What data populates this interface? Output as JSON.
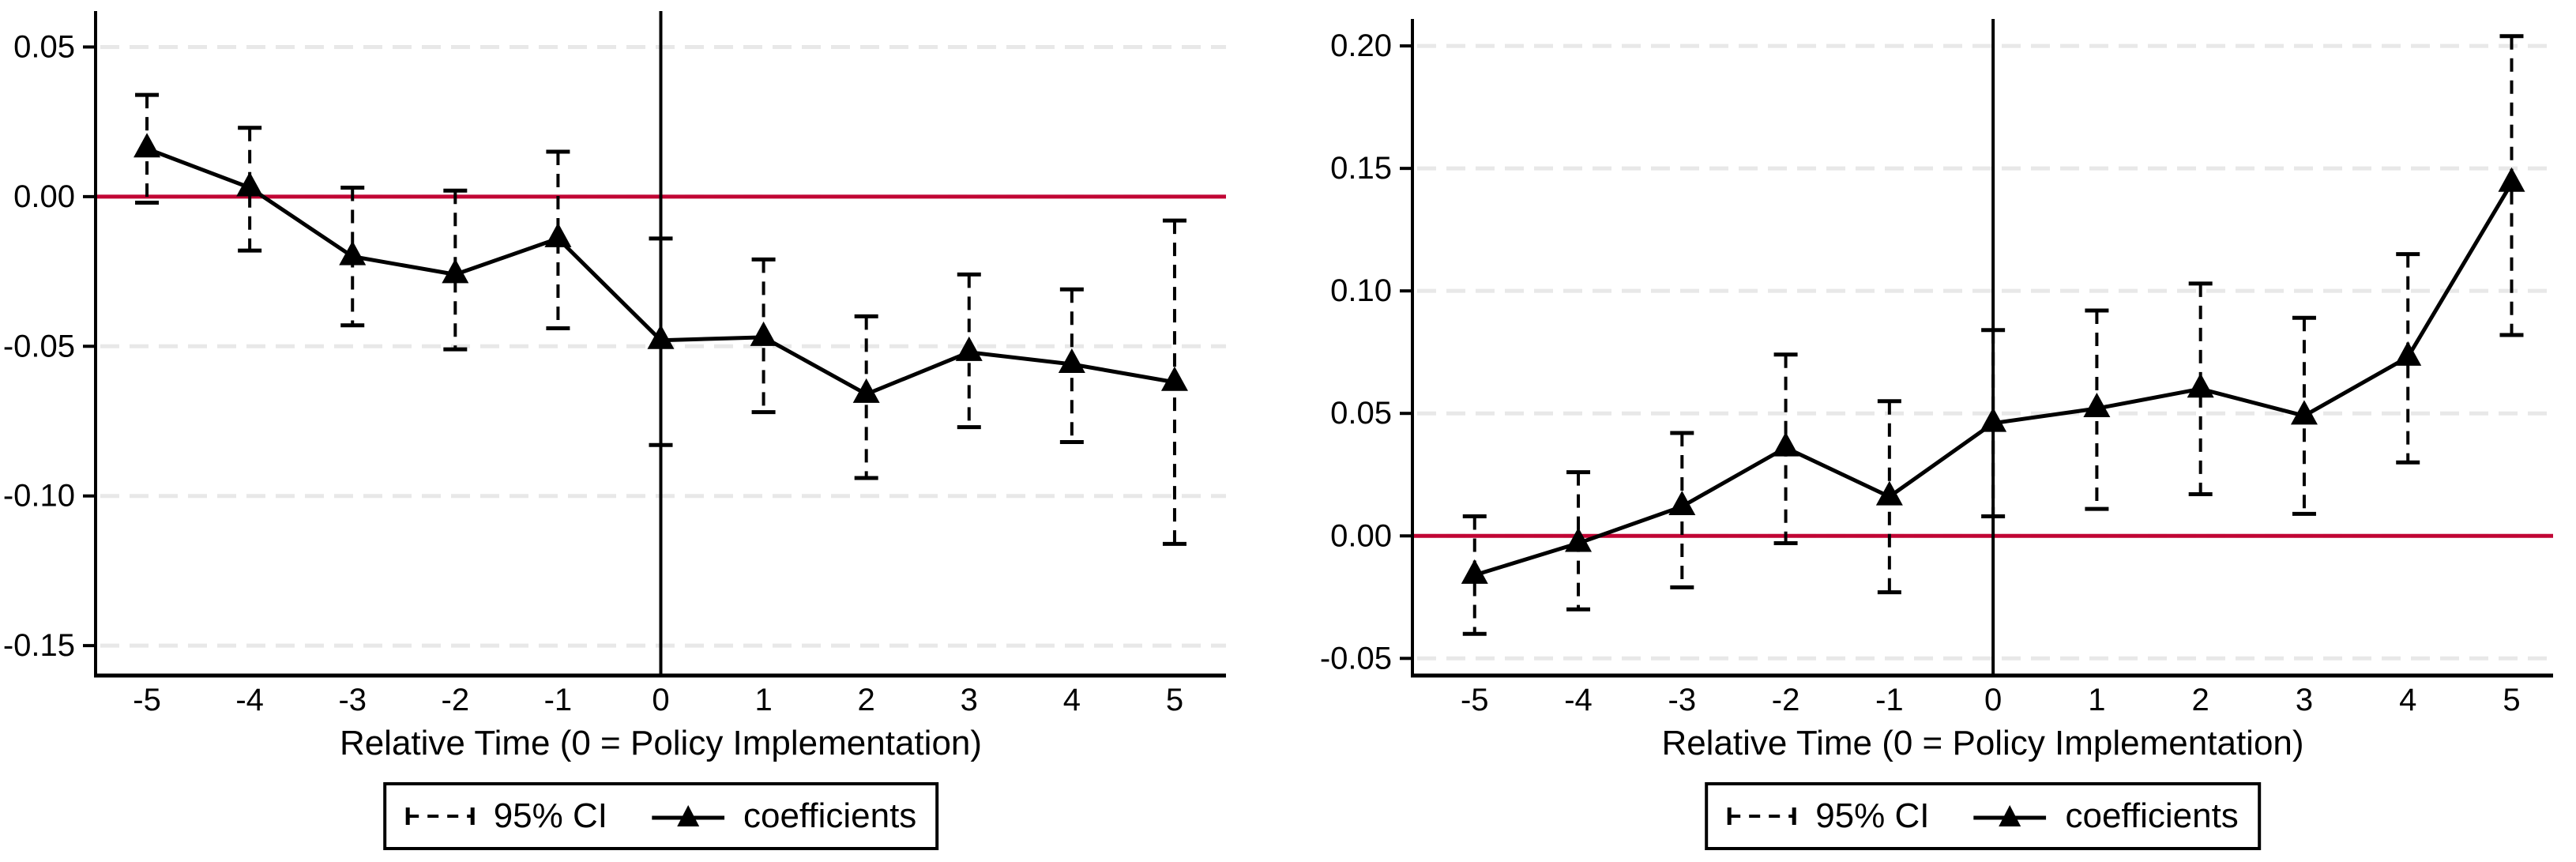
{
  "figure": {
    "background_color": "#ffffff",
    "axis_color": "#000000",
    "grid_color": "#e8e8e8",
    "zero_line_color": "#c10534",
    "marker_shape": "filled-triangle-up"
  },
  "chart_data": [
    {
      "type": "line",
      "panel": "left",
      "title": "",
      "xlabel": "Relative Time (0 = Policy Implementation)",
      "ylabel": "",
      "legend": {
        "ci": "95% CI",
        "coef": "coefficients",
        "position": "bottom-center-boxed"
      },
      "grid": true,
      "zero_line": true,
      "vertical_line_x": 0,
      "x": [
        -5,
        -4,
        -3,
        -2,
        -1,
        0,
        1,
        2,
        3,
        4,
        5
      ],
      "xtick_labels": [
        "-5",
        "-4",
        "-3",
        "-2",
        "-1",
        "0",
        "1",
        "2",
        "3",
        "4",
        "5"
      ],
      "xlim": [
        -5.5,
        5.5
      ],
      "ylim": [
        -0.16,
        0.062
      ],
      "yticks": [
        {
          "label": "0.05",
          "value": 0.05
        },
        {
          "label": "0.00",
          "value": 0.0
        },
        {
          "label": "-0.05",
          "value": -0.05
        },
        {
          "label": "-0.10",
          "value": -0.1
        },
        {
          "label": "-0.15",
          "value": -0.15
        }
      ],
      "series": [
        {
          "name": "coefficients",
          "style": "solid-black-line-triangle-markers",
          "values": [
            0.016,
            0.003,
            -0.02,
            -0.026,
            -0.014,
            -0.048,
            -0.047,
            -0.066,
            -0.052,
            -0.056,
            -0.062
          ]
        },
        {
          "name": "95% CI lower",
          "style": "dashed-whisker-cap",
          "values": [
            -0.002,
            -0.018,
            -0.043,
            -0.051,
            -0.044,
            -0.083,
            -0.072,
            -0.094,
            -0.077,
            -0.082,
            -0.116
          ]
        },
        {
          "name": "95% CI upper",
          "style": "dashed-whisker-cap",
          "values": [
            0.034,
            0.023,
            0.003,
            0.002,
            0.015,
            -0.014,
            -0.021,
            -0.04,
            -0.026,
            -0.031,
            -0.008
          ]
        }
      ]
    },
    {
      "type": "line",
      "panel": "right",
      "title": "",
      "xlabel": "Relative Time (0 = Policy Implementation)",
      "ylabel": "",
      "legend": {
        "ci": "95% CI",
        "coef": "coefficients",
        "position": "bottom-center-boxed"
      },
      "grid": true,
      "zero_line": true,
      "vertical_line_x": 0,
      "x": [
        -5,
        -4,
        -3,
        -2,
        -1,
        0,
        1,
        2,
        3,
        4,
        5
      ],
      "xtick_labels": [
        "-5",
        "-4",
        "-3",
        "-2",
        "-1",
        "0",
        "1",
        "2",
        "3",
        "4",
        "5"
      ],
      "xlim": [
        -5.6,
        5.4
      ],
      "ylim": [
        -0.057,
        0.211
      ],
      "yticks": [
        {
          "label": "0.20",
          "value": 0.2
        },
        {
          "label": "0.15",
          "value": 0.15
        },
        {
          "label": "0.10",
          "value": 0.1
        },
        {
          "label": "0.05",
          "value": 0.05
        },
        {
          "label": "0.00",
          "value": 0.0
        },
        {
          "label": "-0.05",
          "value": -0.05
        }
      ],
      "series": [
        {
          "name": "coefficients",
          "style": "solid-black-line-triangle-markers",
          "values": [
            -0.016,
            -0.003,
            0.012,
            0.036,
            0.016,
            0.046,
            0.052,
            0.06,
            0.049,
            0.073,
            0.144
          ]
        },
        {
          "name": "95% CI lower",
          "style": "dashed-whisker-cap",
          "values": [
            -0.04,
            -0.03,
            -0.021,
            -0.003,
            -0.023,
            0.008,
            0.011,
            0.017,
            0.009,
            0.03,
            0.082
          ]
        },
        {
          "name": "95% CI upper",
          "style": "dashed-whisker-cap",
          "values": [
            0.008,
            0.026,
            0.042,
            0.074,
            0.055,
            0.084,
            0.092,
            0.103,
            0.089,
            0.115,
            0.204
          ]
        }
      ]
    }
  ]
}
